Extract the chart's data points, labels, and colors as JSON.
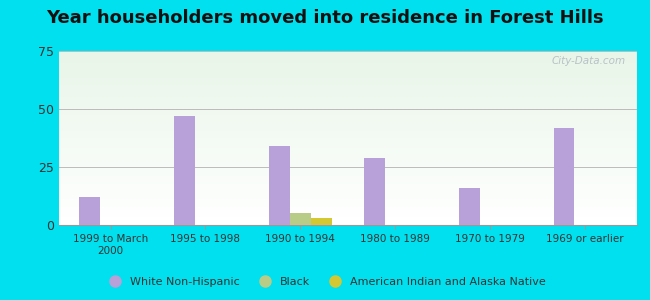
{
  "title": "Year householders moved into residence in Forest Hills",
  "categories": [
    "1999 to March\n2000",
    "1995 to 1998",
    "1990 to 1994",
    "1980 to 1989",
    "1970 to 1979",
    "1969 or earlier"
  ],
  "white_non_hispanic": [
    12,
    47,
    34,
    29,
    16,
    42
  ],
  "black": [
    0,
    0,
    5,
    0,
    0,
    0
  ],
  "american_indian": [
    0,
    0,
    3,
    0,
    0,
    0
  ],
  "white_color": "#b8a0d8",
  "black_color": "#b8cc88",
  "american_indian_color": "#d4c832",
  "ylim": [
    0,
    75
  ],
  "yticks": [
    0,
    25,
    50,
    75
  ],
  "outer_bg": "#00e0ee",
  "bar_width": 0.22,
  "watermark": "City-Data.com",
  "title_fontsize": 13,
  "legend_labels": [
    "White Non-Hispanic",
    "Black",
    "American Indian and Alaska Native"
  ]
}
